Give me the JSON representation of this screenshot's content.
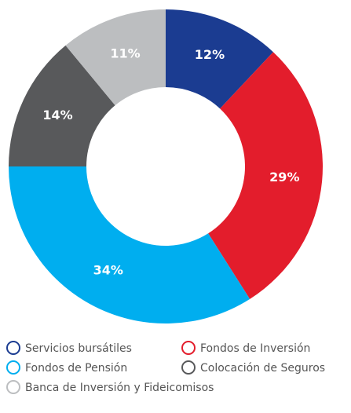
{
  "chart_data": {
    "type": "donut",
    "categories": [
      "Servicios bursátiles",
      "Fondos de Inversión",
      "Fondos de Pensión",
      "Colocación de Seguros",
      "Banca de Inversión y Fideicomisos"
    ],
    "values": [
      12,
      29,
      34,
      14,
      11
    ],
    "value_labels": [
      "12%",
      "29%",
      "34%",
      "14%",
      "11%"
    ],
    "colors": [
      "#1b3c91",
      "#e31d2c",
      "#00aeef",
      "#58595b",
      "#bcbec0"
    ],
    "legend": "bottom"
  }
}
